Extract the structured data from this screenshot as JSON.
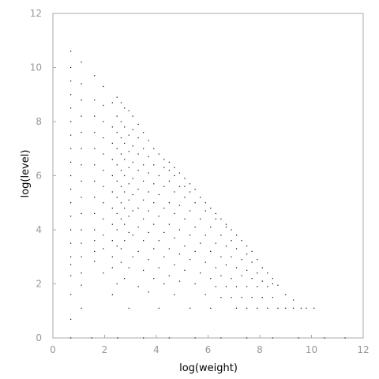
{
  "chart_data": {
    "type": "scatter",
    "title": "",
    "xlabel": "log(weight)",
    "ylabel": "log(level)",
    "xlim": [
      0,
      12
    ],
    "ylim": [
      0,
      12
    ],
    "xticks": [
      "0",
      "2",
      "4",
      "6",
      "8",
      "10",
      "12"
    ],
    "yticks": [
      "0",
      "2",
      "4",
      "6",
      "8",
      "10",
      "12"
    ],
    "grid": false,
    "legend": "none",
    "marker_color": "#000000",
    "axis_color": "#aaaaaa",
    "tick_label_color": "#999999",
    "series": [
      {
        "points": [
          [
            0.69,
            0.69
          ],
          [
            0.69,
            1.61
          ],
          [
            0.69,
            2.3
          ],
          [
            0.69,
            2.71
          ],
          [
            0.69,
            3.0
          ],
          [
            0.69,
            3.5
          ],
          [
            0.69,
            4.0
          ],
          [
            0.69,
            4.5
          ],
          [
            0.69,
            5.0
          ],
          [
            0.69,
            5.5
          ],
          [
            0.69,
            6.0
          ],
          [
            0.69,
            6.5
          ],
          [
            0.69,
            7.0
          ],
          [
            0.69,
            7.5
          ],
          [
            0.69,
            8.0
          ],
          [
            0.69,
            8.5
          ],
          [
            0.69,
            9.0
          ],
          [
            0.69,
            9.5
          ],
          [
            0.69,
            10.0
          ],
          [
            0.69,
            10.6
          ],
          [
            1.1,
            1.1
          ],
          [
            1.1,
            1.95
          ],
          [
            1.1,
            2.4
          ],
          [
            1.1,
            3.0
          ],
          [
            1.1,
            3.5
          ],
          [
            1.1,
            4.0
          ],
          [
            1.1,
            4.6
          ],
          [
            1.1,
            5.2
          ],
          [
            1.1,
            5.8
          ],
          [
            1.1,
            6.4
          ],
          [
            1.1,
            7.0
          ],
          [
            1.1,
            7.6
          ],
          [
            1.1,
            8.2
          ],
          [
            1.1,
            8.8
          ],
          [
            1.1,
            9.4
          ],
          [
            1.1,
            10.2
          ],
          [
            1.61,
            2.83
          ],
          [
            1.61,
            3.2
          ],
          [
            1.61,
            3.6
          ],
          [
            1.61,
            4.0
          ],
          [
            1.61,
            4.6
          ],
          [
            1.61,
            5.2
          ],
          [
            1.61,
            5.8
          ],
          [
            1.61,
            6.4
          ],
          [
            1.61,
            7.0
          ],
          [
            1.61,
            7.6
          ],
          [
            1.61,
            8.2
          ],
          [
            1.61,
            8.8
          ],
          [
            1.61,
            9.7
          ],
          [
            1.95,
            2.4
          ],
          [
            1.95,
            3.3
          ],
          [
            1.95,
            3.8
          ],
          [
            1.95,
            4.4
          ],
          [
            1.95,
            5.0
          ],
          [
            1.95,
            5.6
          ],
          [
            1.95,
            6.2
          ],
          [
            1.95,
            6.8
          ],
          [
            1.95,
            7.4
          ],
          [
            1.95,
            8.0
          ],
          [
            1.95,
            8.6
          ],
          [
            1.95,
            9.3
          ],
          [
            2.3,
            1.6
          ],
          [
            2.3,
            2.6
          ],
          [
            2.3,
            3.0
          ],
          [
            2.3,
            3.6
          ],
          [
            2.3,
            4.2
          ],
          [
            2.3,
            4.8
          ],
          [
            2.3,
            5.4
          ],
          [
            2.3,
            6.0
          ],
          [
            2.3,
            6.6
          ],
          [
            2.3,
            7.2
          ],
          [
            2.3,
            7.8
          ],
          [
            2.3,
            8.7
          ],
          [
            2.48,
            2.0
          ],
          [
            2.48,
            3.4
          ],
          [
            2.48,
            4.0
          ],
          [
            2.48,
            4.6
          ],
          [
            2.48,
            5.2
          ],
          [
            2.48,
            5.8
          ],
          [
            2.48,
            6.4
          ],
          [
            2.48,
            7.0
          ],
          [
            2.48,
            7.6
          ],
          [
            2.48,
            8.2
          ],
          [
            2.48,
            8.9
          ],
          [
            2.64,
            2.8
          ],
          [
            2.64,
            3.3
          ],
          [
            2.64,
            4.4
          ],
          [
            2.64,
            5.0
          ],
          [
            2.64,
            5.6
          ],
          [
            2.64,
            6.2
          ],
          [
            2.64,
            6.8
          ],
          [
            2.64,
            7.4
          ],
          [
            2.64,
            8.0
          ],
          [
            2.64,
            8.7
          ],
          [
            2.77,
            2.2
          ],
          [
            2.77,
            3.6
          ],
          [
            2.77,
            4.2
          ],
          [
            2.77,
            4.8
          ],
          [
            2.77,
            5.4
          ],
          [
            2.77,
            6.0
          ],
          [
            2.77,
            6.6
          ],
          [
            2.77,
            7.2
          ],
          [
            2.77,
            7.8
          ],
          [
            2.77,
            8.5
          ],
          [
            2.94,
            1.1
          ],
          [
            2.94,
            2.6
          ],
          [
            2.94,
            3.9
          ],
          [
            2.94,
            4.5
          ],
          [
            2.94,
            5.1
          ],
          [
            2.94,
            5.7
          ],
          [
            2.94,
            6.3
          ],
          [
            2.94,
            6.9
          ],
          [
            2.94,
            7.5
          ],
          [
            2.94,
            8.4
          ],
          [
            3.09,
            3.0
          ],
          [
            3.09,
            3.8
          ],
          [
            3.09,
            4.7
          ],
          [
            3.09,
            5.3
          ],
          [
            3.09,
            5.9
          ],
          [
            3.09,
            6.5
          ],
          [
            3.09,
            7.1
          ],
          [
            3.09,
            7.7
          ],
          [
            3.09,
            8.2
          ],
          [
            3.3,
            1.9
          ],
          [
            3.3,
            3.2
          ],
          [
            3.3,
            4.1
          ],
          [
            3.3,
            4.8
          ],
          [
            3.3,
            5.5
          ],
          [
            3.3,
            6.2
          ],
          [
            3.3,
            6.8
          ],
          [
            3.3,
            7.4
          ],
          [
            3.3,
            7.9
          ],
          [
            3.5,
            2.5
          ],
          [
            3.5,
            3.6
          ],
          [
            3.5,
            4.4
          ],
          [
            3.5,
            5.1
          ],
          [
            3.5,
            5.8
          ],
          [
            3.5,
            6.4
          ],
          [
            3.5,
            7.0
          ],
          [
            3.5,
            7.6
          ],
          [
            3.7,
            1.7
          ],
          [
            3.7,
            2.9
          ],
          [
            3.7,
            3.9
          ],
          [
            3.7,
            4.7
          ],
          [
            3.7,
            5.4
          ],
          [
            3.7,
            6.1
          ],
          [
            3.7,
            6.7
          ],
          [
            3.7,
            7.3
          ],
          [
            3.9,
            2.2
          ],
          [
            3.9,
            3.3
          ],
          [
            3.9,
            4.2
          ],
          [
            3.9,
            5.0
          ],
          [
            3.9,
            5.7
          ],
          [
            3.9,
            6.4
          ],
          [
            3.9,
            7.0
          ],
          [
            4.1,
            1.1
          ],
          [
            4.1,
            2.6
          ],
          [
            4.1,
            3.6
          ],
          [
            4.1,
            4.5
          ],
          [
            4.1,
            5.3
          ],
          [
            4.1,
            6.0
          ],
          [
            4.1,
            6.8
          ],
          [
            4.3,
            2.0
          ],
          [
            4.3,
            3.0
          ],
          [
            4.3,
            3.9
          ],
          [
            4.3,
            4.8
          ],
          [
            4.3,
            5.6
          ],
          [
            4.3,
            6.3
          ],
          [
            4.3,
            6.6
          ],
          [
            4.5,
            2.3
          ],
          [
            4.5,
            3.3
          ],
          [
            4.5,
            4.2
          ],
          [
            4.5,
            5.0
          ],
          [
            4.5,
            5.8
          ],
          [
            4.5,
            6.2
          ],
          [
            4.5,
            6.5
          ],
          [
            4.7,
            1.6
          ],
          [
            4.7,
            2.7
          ],
          [
            4.7,
            3.7
          ],
          [
            4.7,
            4.6
          ],
          [
            4.7,
            5.4
          ],
          [
            4.7,
            6.0
          ],
          [
            4.7,
            6.3
          ],
          [
            4.9,
            2.1
          ],
          [
            4.9,
            3.1
          ],
          [
            4.9,
            4.0
          ],
          [
            4.9,
            4.9
          ],
          [
            4.9,
            5.6
          ],
          [
            4.9,
            6.1
          ],
          [
            5.1,
            2.5
          ],
          [
            5.1,
            3.4
          ],
          [
            5.1,
            4.4
          ],
          [
            5.1,
            5.2
          ],
          [
            5.1,
            5.6
          ],
          [
            5.1,
            5.9
          ],
          [
            5.3,
            1.1
          ],
          [
            5.3,
            2.9
          ],
          [
            5.3,
            3.8
          ],
          [
            5.3,
            4.7
          ],
          [
            5.3,
            5.4
          ],
          [
            5.3,
            5.7
          ],
          [
            5.5,
            2.0
          ],
          [
            5.5,
            3.2
          ],
          [
            5.5,
            4.1
          ],
          [
            5.5,
            5.0
          ],
          [
            5.5,
            5.5
          ],
          [
            5.7,
            2.4
          ],
          [
            5.7,
            3.5
          ],
          [
            5.7,
            4.4
          ],
          [
            5.7,
            5.2
          ],
          [
            5.9,
            1.6
          ],
          [
            5.9,
            2.8
          ],
          [
            5.9,
            3.8
          ],
          [
            5.9,
            4.7
          ],
          [
            5.9,
            5.0
          ],
          [
            6.1,
            1.1
          ],
          [
            6.1,
            2.2
          ],
          [
            6.1,
            3.2
          ],
          [
            6.1,
            4.1
          ],
          [
            6.1,
            4.8
          ],
          [
            6.3,
            1.9
          ],
          [
            6.3,
            2.6
          ],
          [
            6.3,
            3.5
          ],
          [
            6.3,
            4.4
          ],
          [
            6.3,
            4.6
          ],
          [
            6.5,
            1.5
          ],
          [
            6.5,
            2.3
          ],
          [
            6.5,
            3.0
          ],
          [
            6.5,
            3.8
          ],
          [
            6.5,
            4.4
          ],
          [
            6.7,
            1.9
          ],
          [
            6.7,
            2.7
          ],
          [
            6.7,
            3.4
          ],
          [
            6.7,
            4.1
          ],
          [
            6.7,
            4.2
          ],
          [
            6.9,
            1.5
          ],
          [
            6.9,
            2.2
          ],
          [
            6.9,
            3.0
          ],
          [
            6.9,
            3.6
          ],
          [
            6.9,
            4.0
          ],
          [
            7.1,
            1.1
          ],
          [
            7.1,
            1.9
          ],
          [
            7.1,
            2.6
          ],
          [
            7.1,
            3.3
          ],
          [
            7.1,
            3.8
          ],
          [
            7.3,
            1.5
          ],
          [
            7.3,
            2.3
          ],
          [
            7.3,
            2.9
          ],
          [
            7.3,
            3.6
          ],
          [
            7.5,
            1.1
          ],
          [
            7.5,
            1.9
          ],
          [
            7.5,
            2.5
          ],
          [
            7.5,
            3.1
          ],
          [
            7.5,
            3.4
          ],
          [
            7.7,
            1.5
          ],
          [
            7.7,
            2.2
          ],
          [
            7.7,
            2.8
          ],
          [
            7.7,
            3.2
          ],
          [
            7.9,
            1.1
          ],
          [
            7.9,
            1.9
          ],
          [
            7.9,
            2.4
          ],
          [
            7.9,
            2.9
          ],
          [
            8.1,
            1.5
          ],
          [
            8.1,
            2.1
          ],
          [
            8.1,
            2.6
          ],
          [
            8.3,
            1.1
          ],
          [
            8.3,
            1.9
          ],
          [
            8.3,
            2.4
          ],
          [
            8.5,
            1.5
          ],
          [
            8.5,
            2.0
          ],
          [
            8.5,
            2.2
          ],
          [
            8.7,
            1.1
          ],
          [
            8.7,
            1.95
          ],
          [
            9.0,
            1.1
          ],
          [
            9.0,
            1.6
          ],
          [
            9.3,
            1.1
          ],
          [
            9.3,
            1.4
          ],
          [
            9.6,
            1.1
          ],
          [
            9.8,
            1.1
          ],
          [
            10.1,
            1.1
          ],
          [
            0.69,
            0.0
          ],
          [
            1.5,
            0.0
          ],
          [
            2.5,
            0.0
          ],
          [
            3.5,
            0.0
          ],
          [
            4.5,
            0.0
          ],
          [
            5.5,
            0.0
          ],
          [
            6.5,
            0.0
          ],
          [
            7.5,
            0.0
          ],
          [
            8.5,
            0.0
          ],
          [
            9.5,
            0.0
          ],
          [
            10.5,
            0.0
          ],
          [
            11.3,
            0.0
          ]
        ]
      }
    ]
  }
}
